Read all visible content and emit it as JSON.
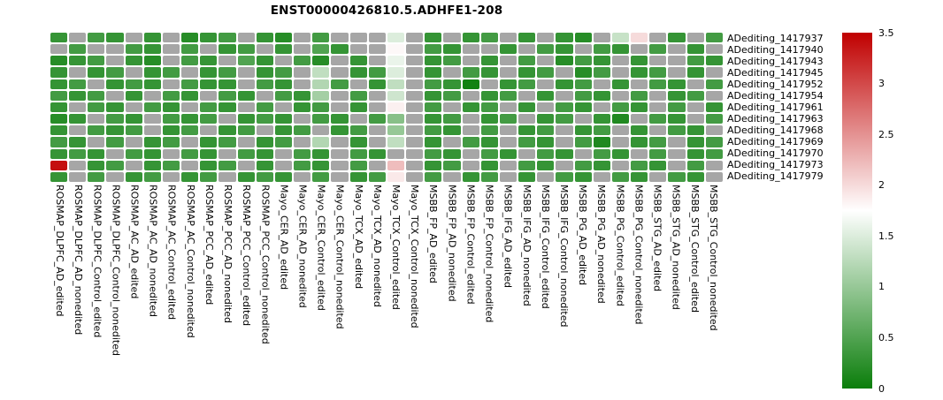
{
  "title": "ENST00000426810.5.ADHFE1-208",
  "chart_data": {
    "type": "heatmap",
    "title": "ENST00000426810.5.ADHFE1-208",
    "legend_position": "right",
    "grid": false,
    "rows": [
      "ADediting_1417937",
      "ADediting_1417940",
      "ADediting_1417943",
      "ADediting_1417945",
      "ADediting_1417952",
      "ADediting_1417954",
      "ADediting_1417961",
      "ADediting_1417963",
      "ADediting_1417968",
      "ADediting_1417969",
      "ADediting_1417970",
      "ADediting_1417973",
      "ADediting_1417979"
    ],
    "columns": [
      "ROSMAP_DLPFC_AD_edited",
      "ROSMAP_DLPFC_AD_nonedited",
      "ROSMAP_DLPFC_Control_edited",
      "ROSMAP_DLPFC_Control_nonedited",
      "ROSMAP_AC_AD_edited",
      "ROSMAP_AC_AD_nonedited",
      "ROSMAP_AC_Control_edited",
      "ROSMAP_AC_Control_nonedited",
      "ROSMAP_PCC_AD_edited",
      "ROSMAP_PCC_AD_nonedited",
      "ROSMAP_PCC_Control_edited",
      "ROSMAP_PCC_Control_nonedited",
      "Mayo_CER_AD_edited",
      "Mayo_CER_AD_nonedited",
      "Mayo_CER_Control_edited",
      "Mayo_CER_Control_nonedited",
      "Mayo_TCX_AD_edited",
      "Mayo_TCX_AD_nonedited",
      "Mayo_TCX_Control_edited",
      "Mayo_TCX_Control_nonedited",
      "MSBB_FP_AD_edited",
      "MSBB_FP_AD_nonedited",
      "MSBB_FP_Control_edited",
      "MSBB_FP_Control_nonedited",
      "MSBB_IFG_AD_edited",
      "MSBB_IFG_AD_nonedited",
      "MSBB_IFG_Control_edited",
      "MSBB_IFG_Control_nonedited",
      "MSBB_PG_AD_edited",
      "MSBB_PG_AD_nonedited",
      "MSBB_PG_Control_edited",
      "MSBB_PG_Control_nonedited",
      "MSBB_STG_AD_edited",
      "MSBB_STG_AD_nonedited",
      "MSBB_STG_Control_edited",
      "MSBB_STG_Control_nonedited"
    ],
    "values": [
      [
        0.3,
        null,
        0.4,
        0.3,
        null,
        0.3,
        null,
        0.2,
        0.3,
        0.4,
        null,
        0.3,
        0.2,
        null,
        0.4,
        null,
        null,
        null,
        1.5,
        null,
        0.3,
        null,
        0.3,
        0.4,
        null,
        0.3,
        null,
        0.3,
        0.2,
        null,
        1.35,
        2.0,
        null,
        0.3,
        null,
        0.4
      ],
      [
        null,
        0.4,
        null,
        null,
        0.4,
        0.3,
        null,
        0.4,
        null,
        0.3,
        0.4,
        null,
        0.3,
        null,
        0.5,
        0.3,
        null,
        null,
        1.8,
        null,
        0.4,
        0.3,
        null,
        null,
        0.3,
        null,
        0.4,
        0.3,
        null,
        0.4,
        0.3,
        null,
        0.4,
        null,
        0.3,
        null
      ],
      [
        0.2,
        0.3,
        0.4,
        null,
        0.3,
        0.2,
        null,
        0.4,
        0.3,
        null,
        0.5,
        0.3,
        null,
        0.4,
        0.2,
        null,
        0.3,
        null,
        1.6,
        null,
        0.3,
        0.4,
        null,
        0.3,
        null,
        0.4,
        null,
        0.2,
        0.4,
        0.3,
        null,
        0.3,
        null,
        null,
        0.4,
        0.3
      ],
      [
        0.3,
        null,
        0.3,
        0.4,
        null,
        0.3,
        0.4,
        null,
        0.3,
        0.4,
        null,
        0.3,
        0.4,
        null,
        1.3,
        null,
        0.3,
        0.4,
        1.5,
        null,
        0.3,
        null,
        0.4,
        0.3,
        null,
        0.3,
        0.4,
        null,
        0.2,
        0.4,
        null,
        0.3,
        0.4,
        null,
        0.3,
        null
      ],
      [
        0.3,
        0.4,
        null,
        0.3,
        0.4,
        0.3,
        null,
        0.4,
        0.3,
        0.3,
        null,
        0.4,
        0.3,
        null,
        1.2,
        0.4,
        null,
        0.3,
        1.3,
        null,
        0.4,
        0.3,
        0.05,
        null,
        0.3,
        0.4,
        null,
        0.3,
        0.4,
        null,
        0.3,
        null,
        0.4,
        0.3,
        null,
        0.4
      ],
      [
        0.4,
        0.3,
        0.4,
        null,
        0.3,
        null,
        0.4,
        0.3,
        null,
        0.4,
        0.3,
        null,
        0.4,
        0.3,
        1.1,
        null,
        0.4,
        null,
        1.4,
        null,
        0.3,
        0.4,
        null,
        0.3,
        0.4,
        null,
        0.3,
        null,
        0.4,
        0.3,
        null,
        0.4,
        null,
        0.3,
        0.4,
        null
      ],
      [
        0.3,
        null,
        0.4,
        0.3,
        null,
        0.4,
        0.3,
        null,
        0.4,
        0.3,
        null,
        0.4,
        null,
        0.3,
        0.4,
        null,
        0.3,
        null,
        1.85,
        null,
        0.4,
        null,
        0.3,
        0.4,
        null,
        0.3,
        null,
        0.4,
        0.3,
        null,
        0.4,
        0.3,
        null,
        0.4,
        null,
        0.3
      ],
      [
        0.2,
        0.3,
        null,
        0.4,
        0.3,
        null,
        0.4,
        0.3,
        0.4,
        null,
        0.3,
        0.4,
        0.3,
        null,
        0.4,
        0.3,
        null,
        0.4,
        0.9,
        null,
        0.3,
        0.4,
        null,
        0.3,
        0.4,
        null,
        0.3,
        0.4,
        null,
        0.3,
        0.15,
        null,
        0.4,
        0.3,
        null,
        0.4
      ],
      [
        0.3,
        null,
        0.4,
        0.3,
        0.4,
        null,
        0.3,
        0.4,
        null,
        0.3,
        0.4,
        null,
        0.3,
        0.4,
        null,
        0.3,
        0.4,
        null,
        1.0,
        null,
        0.4,
        0.3,
        null,
        0.4,
        null,
        0.3,
        0.4,
        null,
        0.3,
        0.4,
        null,
        0.3,
        null,
        0.4,
        0.3,
        null
      ],
      [
        0.4,
        0.3,
        null,
        0.4,
        null,
        0.3,
        0.4,
        null,
        0.3,
        0.4,
        null,
        0.3,
        0.4,
        null,
        1.2,
        null,
        0.3,
        null,
        1.3,
        null,
        0.3,
        null,
        0.4,
        0.3,
        null,
        0.4,
        0.3,
        null,
        0.4,
        0.15,
        null,
        0.3,
        0.4,
        null,
        0.3,
        0.4
      ],
      [
        0.3,
        0.4,
        0.3,
        null,
        0.4,
        0.3,
        null,
        0.4,
        0.3,
        null,
        0.4,
        0.3,
        null,
        0.4,
        0.3,
        null,
        0.4,
        0.3,
        null,
        null,
        0.4,
        0.3,
        null,
        0.4,
        0.3,
        null,
        0.4,
        0.3,
        null,
        0.4,
        0.3,
        null,
        0.4,
        null,
        0.3,
        0.4
      ],
      [
        3.4,
        null,
        0.3,
        0.4,
        null,
        0.3,
        0.4,
        null,
        0.3,
        0.4,
        null,
        0.3,
        null,
        0.4,
        0.3,
        null,
        0.4,
        null,
        2.2,
        null,
        0.3,
        0.4,
        null,
        0.3,
        null,
        0.4,
        0.3,
        null,
        0.4,
        0.3,
        null,
        0.4,
        0.3,
        null,
        0.4,
        null
      ],
      [
        0.3,
        null,
        0.4,
        null,
        0.3,
        0.4,
        null,
        0.3,
        0.4,
        null,
        0.3,
        0.4,
        0.3,
        null,
        0.4,
        null,
        0.3,
        0.4,
        1.9,
        null,
        0.4,
        null,
        0.3,
        0.4,
        null,
        0.3,
        null,
        0.4,
        0.3,
        null,
        0.4,
        0.3,
        null,
        0.4,
        0.3,
        null
      ]
    ],
    "na_color": "#a6a6a6",
    "colormap": {
      "vmin": 0,
      "vmid": 1.75,
      "vmax": 3.5,
      "low": "#0b7e0b",
      "mid": "#ffffff",
      "high": "#c00000"
    },
    "colorbar_ticks": [
      "3.5",
      "3",
      "2.5",
      "2",
      "1.5",
      "1",
      "0.5",
      "0"
    ]
  }
}
